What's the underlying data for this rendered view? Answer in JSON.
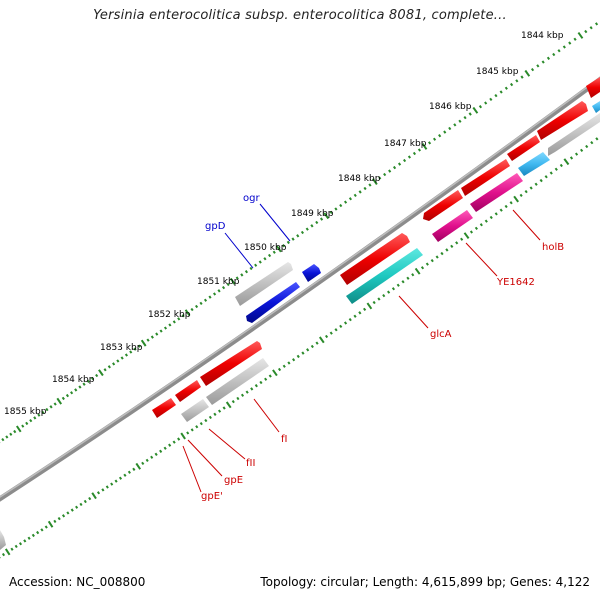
{
  "title": "Yersinia enterocolitica subsp. enterocolitica 8081, complete...",
  "footer": {
    "accession": "Accession: NC_008800",
    "summary": "Topology: circular; Length: 4,615,899 bp; Genes: 4,122"
  },
  "colors": {
    "background": "#ffffff",
    "backbone": "#8c8c8c",
    "tick": "#2a8a2a",
    "gene_label": "#cc0000",
    "highlight_label": "#0000cc",
    "red_gene": "#ee0000",
    "gray_gene": "#c0c0c0",
    "blue_gene": "#0a14d8",
    "cyan_gene": "#1ec8c0",
    "magenta_gene": "#e0108c",
    "lightblue_gene": "#40b8f0"
  },
  "scale_labels": [
    "1844 kbp",
    "1845 kbp",
    "1846 kbp",
    "1847 kbp",
    "1848 kbp",
    "1849 kbp",
    "1850 kbp",
    "1851 kbp",
    "1852 kbp",
    "1853 kbp",
    "1854 kbp",
    "1855 kbp"
  ],
  "gene_labels": [
    {
      "text": "ogr",
      "color": "highlight"
    },
    {
      "text": "gpD",
      "color": "highlight"
    },
    {
      "text": "holB",
      "color": "gene"
    },
    {
      "text": "YE1642",
      "color": "gene"
    },
    {
      "text": "glcA",
      "color": "gene"
    },
    {
      "text": "fI",
      "color": "gene"
    },
    {
      "text": "fII",
      "color": "gene"
    },
    {
      "text": "gpE",
      "color": "gene"
    },
    {
      "text": "gpE'",
      "color": "gene"
    }
  ]
}
